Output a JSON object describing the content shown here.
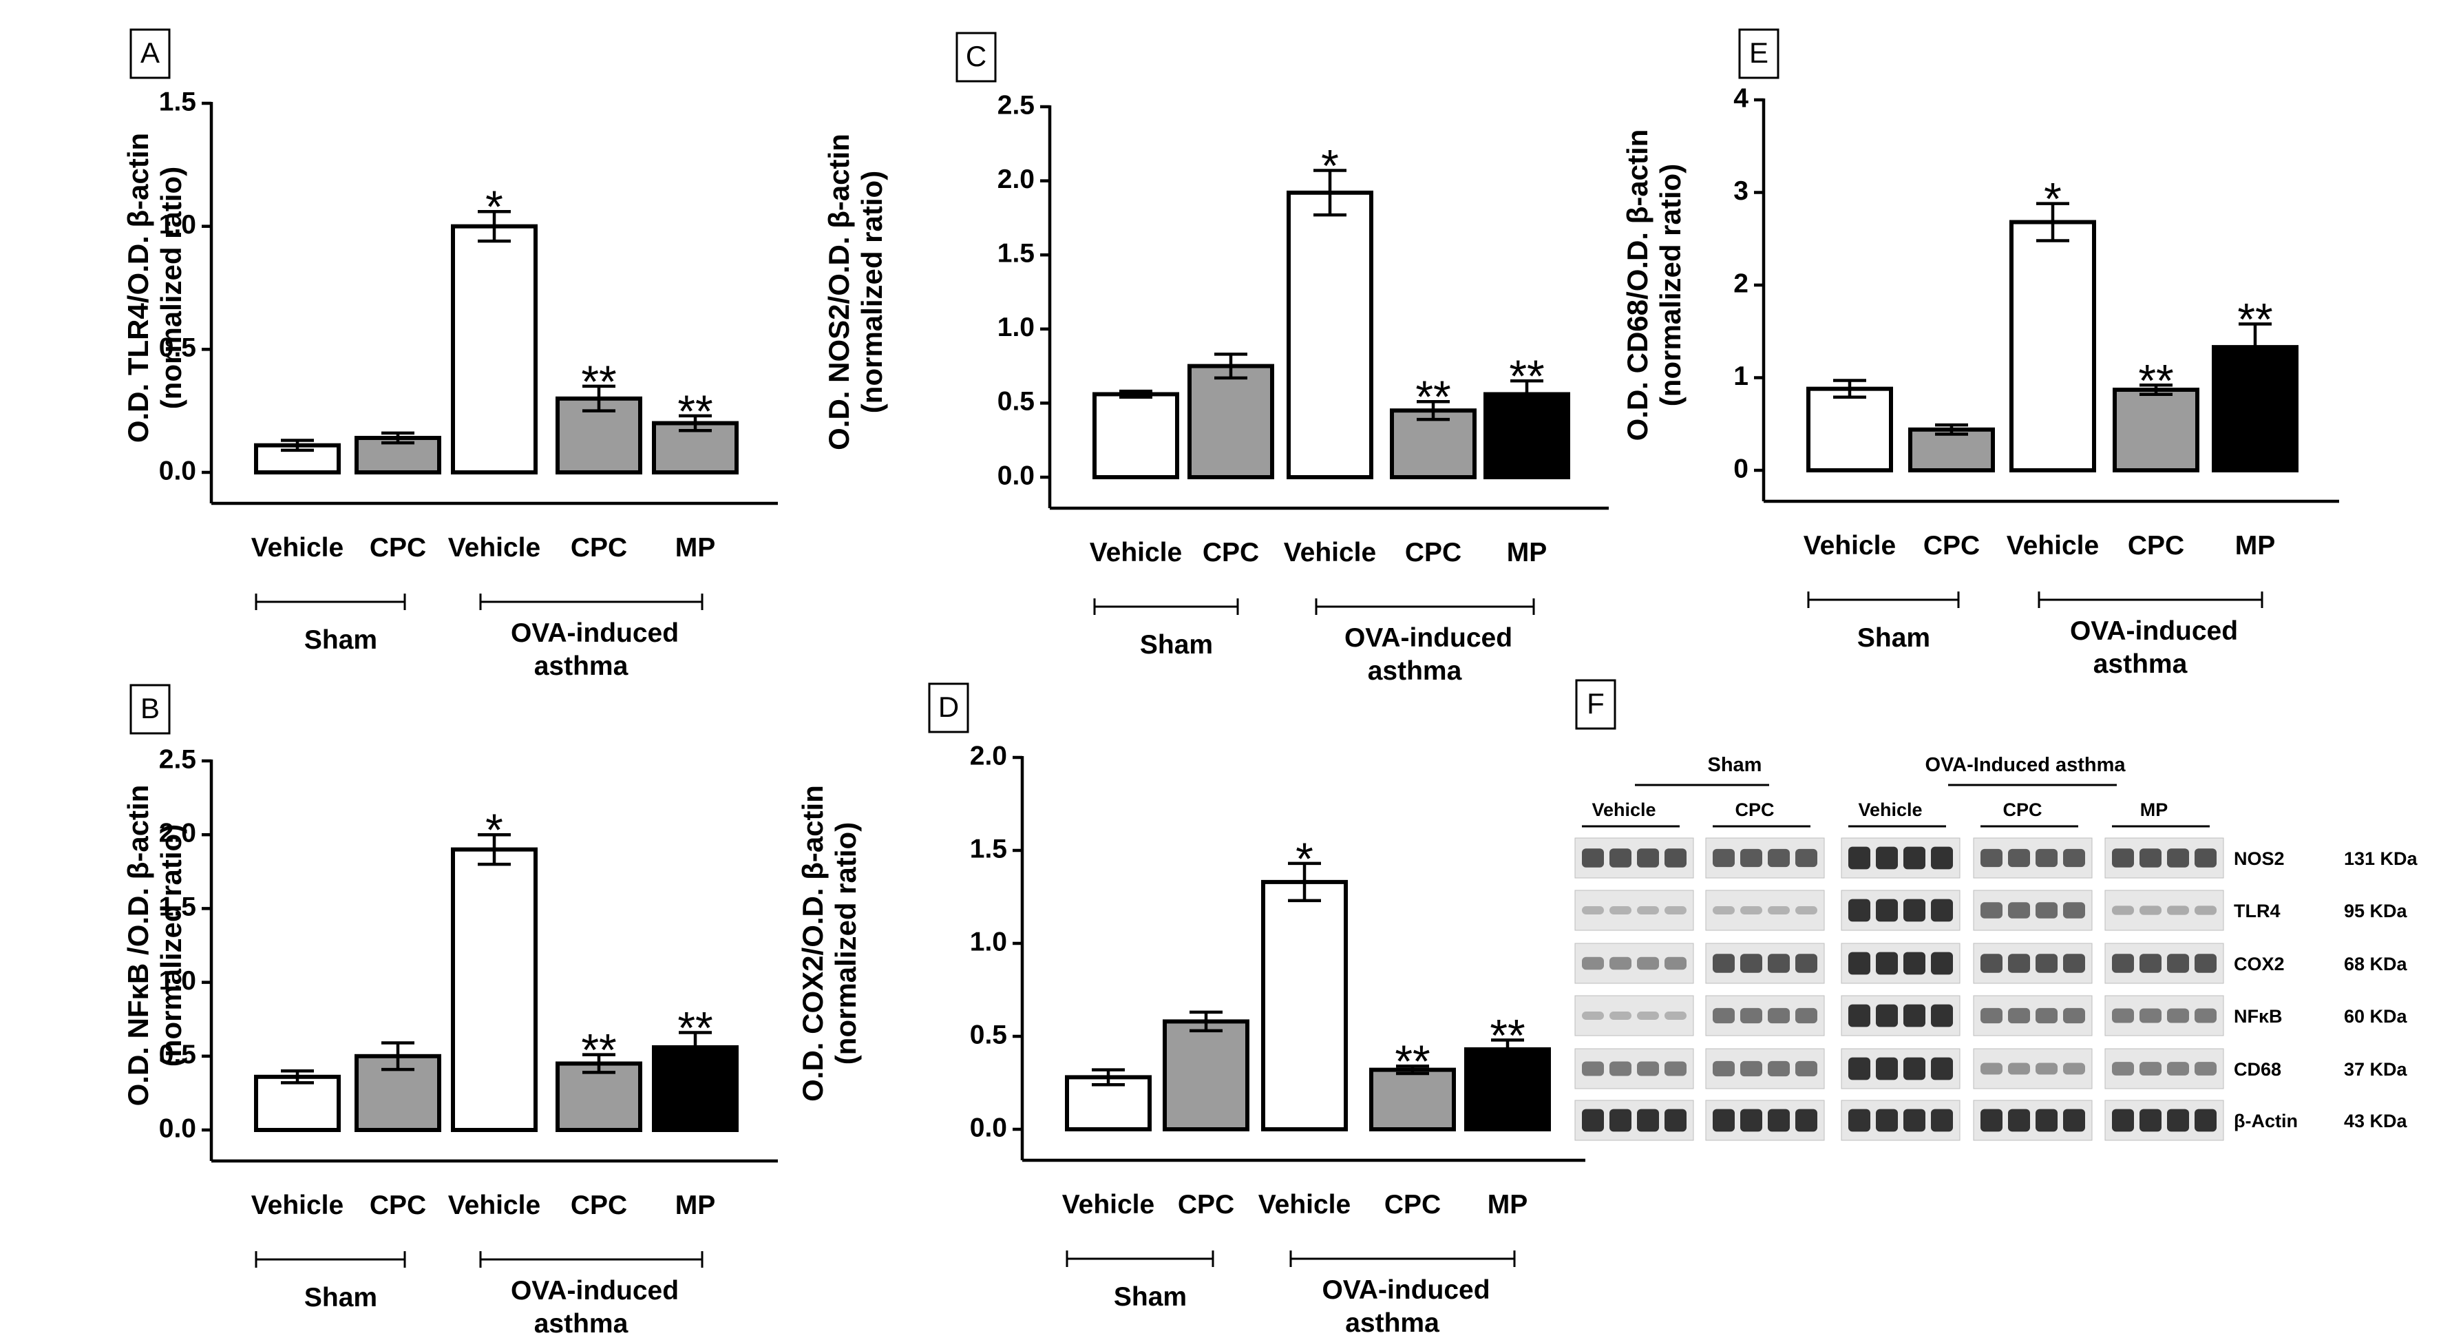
{
  "colors": {
    "white_bar": "#ffffff",
    "gray_bar": "#9c9c9c",
    "black_bar": "#000000",
    "axis": "#000000",
    "blot_bg": "#e7e7e7",
    "band": "#2a2a2a"
  },
  "shared": {
    "categories": [
      "Vehicle",
      "CPC",
      "Vehicle",
      "CPC",
      "MP"
    ],
    "group_sham": "Sham",
    "group_ova_line1": "OVA-induced",
    "group_ova_line2": "asthma",
    "y_label_line2": "(normalized ratio)"
  },
  "chart_data": [
    {
      "panel": "A",
      "type": "bar",
      "ylabel": "O.D. TLR4/O.D. β-actin",
      "ylabel2": "(normalized ratio)",
      "categories": [
        "Vehicle",
        "CPC",
        "Vehicle",
        "CPC",
        "MP"
      ],
      "values": [
        0.11,
        0.14,
        1.0,
        0.3,
        0.2
      ],
      "errors": [
        0.02,
        0.02,
        0.06,
        0.05,
        0.03
      ],
      "significance": [
        "",
        "",
        "*",
        "**",
        "**"
      ],
      "ylim": [
        0,
        1.5
      ],
      "ticks": [
        "0.0",
        "0.5",
        "1.0",
        "1.5"
      ],
      "tick_values": [
        0,
        0.5,
        1.0,
        1.5
      ],
      "bar_colors": [
        "white",
        "gray",
        "white",
        "gray",
        "gray"
      ]
    },
    {
      "panel": "B",
      "type": "bar",
      "ylabel": "O.D. NFκB /O.D. β-actin",
      "ylabel2": "(normalized ratio)",
      "categories": [
        "Vehicle",
        "CPC",
        "Vehicle",
        "CPC",
        "MP"
      ],
      "values": [
        0.36,
        0.5,
        1.9,
        0.45,
        0.56
      ],
      "errors": [
        0.04,
        0.09,
        0.1,
        0.06,
        0.1
      ],
      "significance": [
        "",
        "",
        "*",
        "**",
        "**"
      ],
      "ylim": [
        0,
        2.5
      ],
      "ticks": [
        "0.0",
        "0.5",
        "1.0",
        "1.5",
        "2.0",
        "2.5"
      ],
      "tick_values": [
        0,
        0.5,
        1.0,
        1.5,
        2.0,
        2.5
      ],
      "bar_colors": [
        "white",
        "gray",
        "white",
        "gray",
        "black"
      ]
    },
    {
      "panel": "C",
      "type": "bar",
      "ylabel": "O.D. NOS2/O.D. β-actin",
      "ylabel2": "(normalized ratio)",
      "categories": [
        "Vehicle",
        "CPC",
        "Vehicle",
        "CPC",
        "MP"
      ],
      "values": [
        0.56,
        0.75,
        1.92,
        0.45,
        0.56
      ],
      "errors": [
        0.02,
        0.08,
        0.15,
        0.06,
        0.09
      ],
      "significance": [
        "",
        "",
        "*",
        "**",
        "**"
      ],
      "ylim": [
        0,
        2.5
      ],
      "ticks": [
        "0.0",
        "0.5",
        "1.0",
        "1.5",
        "2.0",
        "2.5"
      ],
      "tick_values": [
        0,
        0.5,
        1.0,
        1.5,
        2.0,
        2.5
      ],
      "bar_colors": [
        "white",
        "gray",
        "white",
        "gray",
        "black"
      ]
    },
    {
      "panel": "D",
      "type": "bar",
      "ylabel": "O.D. COX2/O.D. β-actin",
      "ylabel2": "(normalized ratio)",
      "categories": [
        "Vehicle",
        "CPC",
        "Vehicle",
        "CPC",
        "MP"
      ],
      "values": [
        0.28,
        0.58,
        1.33,
        0.32,
        0.43
      ],
      "errors": [
        0.04,
        0.05,
        0.1,
        0.02,
        0.05
      ],
      "significance": [
        "",
        "",
        "*",
        "**",
        "**"
      ],
      "ylim": [
        0,
        2.0
      ],
      "ticks": [
        "0.0",
        "0.5",
        "1.0",
        "1.5",
        "2.0"
      ],
      "tick_values": [
        0,
        0.5,
        1.0,
        1.5,
        2.0
      ],
      "bar_colors": [
        "white",
        "gray",
        "white",
        "gray",
        "black"
      ]
    },
    {
      "panel": "E",
      "type": "bar",
      "ylabel": "O.D. CD68/O.D. β-actin",
      "ylabel2": "(normalized ratio)",
      "categories": [
        "Vehicle",
        "CPC",
        "Vehicle",
        "CPC",
        "MP"
      ],
      "values": [
        0.88,
        0.44,
        2.68,
        0.87,
        1.33
      ],
      "errors": [
        0.09,
        0.05,
        0.2,
        0.05,
        0.25
      ],
      "significance": [
        "",
        "",
        "*",
        "**",
        "**"
      ],
      "ylim": [
        0,
        4
      ],
      "ticks": [
        "0",
        "1",
        "2",
        "3",
        "4"
      ],
      "tick_values": [
        0,
        1,
        2,
        3,
        4
      ],
      "bar_colors": [
        "white",
        "gray",
        "white",
        "gray",
        "black"
      ]
    }
  ],
  "blot": {
    "panel": "F",
    "header_sham": "Sham",
    "header_ova": "OVA-Induced asthma",
    "groups": [
      "Vehicle",
      "CPC",
      "Vehicle",
      "CPC",
      "MP"
    ],
    "rows": [
      {
        "protein": "NOS2",
        "size": "131 KDa"
      },
      {
        "protein": "TLR4",
        "size": "95 KDa"
      },
      {
        "protein": "COX2",
        "size": "68 KDa"
      },
      {
        "protein": "NFκB",
        "size": "60 KDa"
      },
      {
        "protein": "CD68",
        "size": "37 KDa"
      },
      {
        "protein": "β-Actin",
        "size": "43 KDa"
      }
    ],
    "band_intensity": [
      [
        0.75,
        0.7,
        0.95,
        0.7,
        0.75
      ],
      [
        0.15,
        0.15,
        0.95,
        0.6,
        0.2
      ],
      [
        0.4,
        0.75,
        0.95,
        0.75,
        0.75
      ],
      [
        0.15,
        0.55,
        0.95,
        0.55,
        0.5
      ],
      [
        0.5,
        0.55,
        0.95,
        0.35,
        0.45
      ],
      [
        0.95,
        0.95,
        0.95,
        0.95,
        0.95
      ]
    ]
  }
}
